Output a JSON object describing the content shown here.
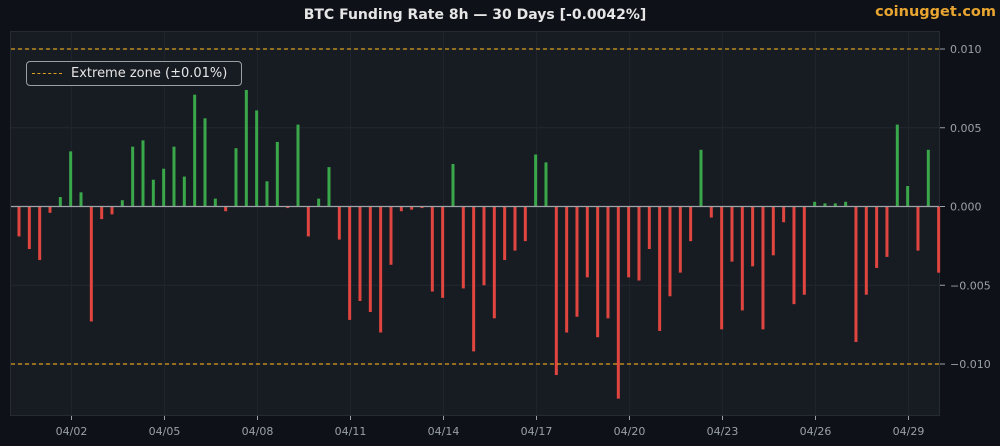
{
  "header": {
    "title": "BTC Funding Rate 8h — 30 Days  [-0.0042%]",
    "brand": "coinugget.com"
  },
  "legend": {
    "label": "Extreme zone (±0.01%)"
  },
  "colors": {
    "positive": "#3aa84a",
    "negative": "#e0463f",
    "extreme": "#e0a020",
    "background": "#0e1118",
    "plot": "#171b22"
  },
  "chart_data": {
    "type": "bar",
    "title": "BTC Funding Rate 8h — 30 Days  [-0.0042%]",
    "xlabel": "",
    "ylabel": "",
    "ylim": [
      -0.0135,
      0.0112
    ],
    "grid": true,
    "legend_position": "upper left",
    "x_tick_labels": [
      "04/02",
      "04/05",
      "04/08",
      "04/11",
      "04/14",
      "04/17",
      "04/20",
      "04/23",
      "04/26",
      "04/29"
    ],
    "y_tick_labels": [
      "0.010",
      "0.005",
      "0.000",
      "−0.005",
      "−0.010"
    ],
    "y_ticks": [
      0.01,
      0.005,
      0.0,
      -0.005,
      -0.01
    ],
    "reference_lines": [
      {
        "y": 0.01,
        "label": "Extreme zone (±0.01%)",
        "style": "dashed"
      },
      {
        "y": -0.01,
        "style": "dashed"
      }
    ],
    "latest_value": -0.0042,
    "values": [
      -0.0019,
      -0.0027,
      -0.0034,
      -0.0004,
      0.0006,
      0.0035,
      0.0009,
      -0.0073,
      -0.0008,
      -0.0005,
      0.0004,
      0.0038,
      0.0042,
      0.0017,
      0.0024,
      0.0038,
      0.0019,
      0.0071,
      0.0056,
      0.0005,
      -0.0003,
      0.0037,
      0.0074,
      0.0061,
      0.0016,
      0.0041,
      -0.0001,
      0.0052,
      -0.0019,
      0.0005,
      0.0025,
      -0.0021,
      -0.0072,
      -0.006,
      -0.0067,
      -0.008,
      -0.0037,
      -0.0003,
      -0.0002,
      -0.0001,
      -0.0054,
      -0.0058,
      0.0027,
      -0.0052,
      -0.0092,
      -0.005,
      -0.0071,
      -0.0034,
      -0.0028,
      -0.0022,
      0.0033,
      0.0028,
      -0.0107,
      -0.008,
      -0.007,
      -0.0045,
      -0.0083,
      -0.0071,
      -0.0122,
      -0.0045,
      -0.0047,
      -0.0027,
      -0.0079,
      -0.0057,
      -0.0042,
      -0.0022,
      0.0036,
      -0.0007,
      -0.0078,
      -0.0035,
      -0.0066,
      -0.0038,
      -0.0078,
      -0.0031,
      -0.001,
      -0.0062,
      -0.0056,
      0.0003,
      0.0002,
      0.0002,
      0.0003,
      -0.0086,
      -0.0056,
      -0.0039,
      -0.0032,
      0.0052,
      0.0013,
      -0.0028,
      0.0036,
      -0.0042
    ]
  }
}
